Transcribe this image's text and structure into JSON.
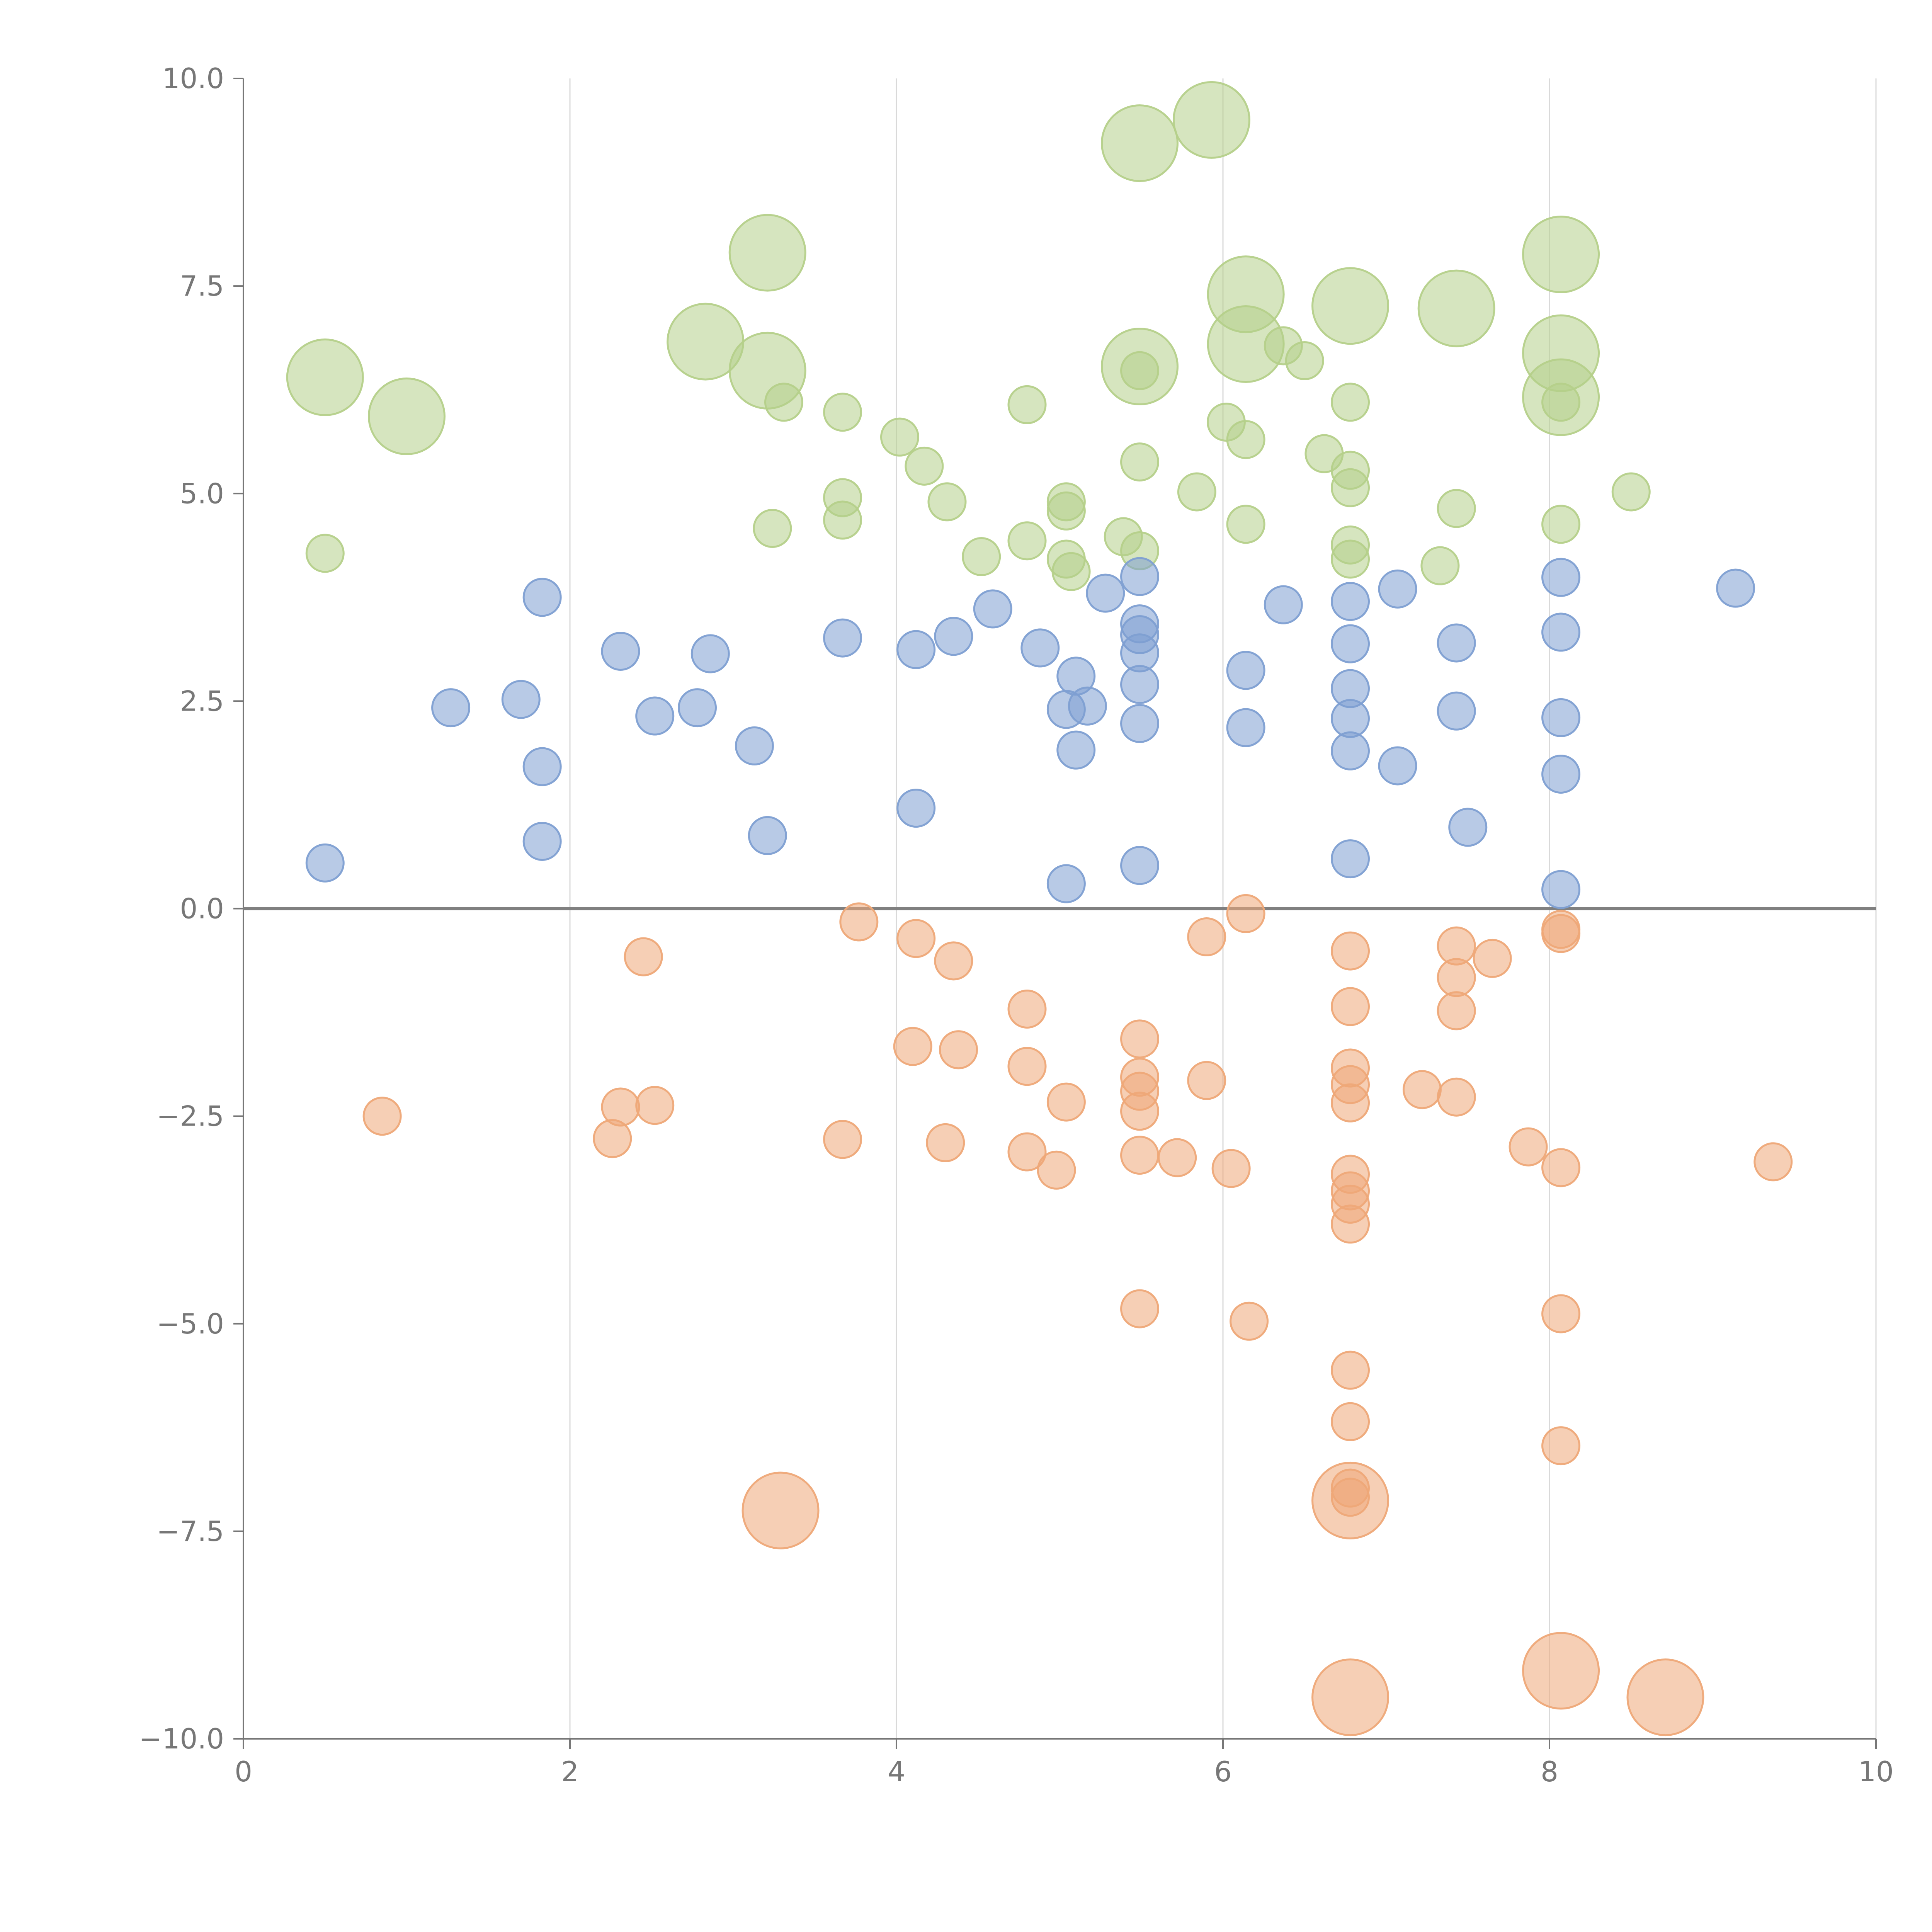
{
  "chart_data": {
    "type": "scatter",
    "title": "",
    "xlabel": "",
    "ylabel": "",
    "xlim": [
      0,
      10
    ],
    "ylim": [
      -10,
      10
    ],
    "grid": "vertical",
    "legend": "none",
    "x_ticks": [
      0,
      2,
      4,
      6,
      8,
      10
    ],
    "x_tick_labels": [
      "0",
      "2",
      "4",
      "6",
      "8",
      "10"
    ],
    "y_ticks": [
      10,
      7.5,
      5,
      2.5,
      0,
      -2.5,
      -5,
      -7.5,
      -10
    ],
    "y_tick_labels": [
      "10.0",
      "7.5",
      "5.0",
      "2.5",
      "0.0",
      "−2.5",
      "−5.0",
      "−7.5",
      "−10.0"
    ],
    "colors": {
      "green": "#b5d08a",
      "blue": "#7e9fd2",
      "orange": "#eea878",
      "axis": "#777777",
      "grid": "#d9d9d9"
    },
    "series": [
      {
        "name": "green",
        "points": [
          [
            0.5,
            6.4,
            3
          ],
          [
            1.0,
            5.93,
            3
          ],
          [
            0.5,
            4.28,
            1
          ],
          [
            2.83,
            6.83,
            3
          ],
          [
            3.21,
            7.9,
            3
          ],
          [
            3.21,
            6.48,
            3
          ],
          [
            3.31,
            6.1,
            1
          ],
          [
            3.67,
            5.98,
            1
          ],
          [
            3.67,
            4.95,
            1
          ],
          [
            3.67,
            4.68,
            1
          ],
          [
            3.24,
            4.58,
            1
          ],
          [
            4.02,
            5.68,
            1
          ],
          [
            4.17,
            5.33,
            1
          ],
          [
            4.31,
            4.9,
            1
          ],
          [
            4.52,
            4.24,
            1
          ],
          [
            4.8,
            6.07,
            1
          ],
          [
            4.8,
            4.43,
            1
          ],
          [
            5.04,
            4.9,
            1
          ],
          [
            5.04,
            4.79,
            1
          ],
          [
            5.04,
            4.21,
            1
          ],
          [
            5.07,
            4.06,
            1
          ],
          [
            5.39,
            4.48,
            1
          ],
          [
            5.49,
            4.31,
            1
          ],
          [
            5.49,
            5.38,
            1
          ],
          [
            5.49,
            9.22,
            3
          ],
          [
            5.49,
            6.53,
            3
          ],
          [
            5.49,
            6.48,
            1
          ],
          [
            5.93,
            9.5,
            3
          ],
          [
            5.84,
            5.02,
            1
          ],
          [
            6.02,
            5.86,
            1
          ],
          [
            6.14,
            5.65,
            1
          ],
          [
            6.14,
            4.63,
            1
          ],
          [
            6.14,
            7.4,
            3
          ],
          [
            6.14,
            6.8,
            3
          ],
          [
            6.37,
            6.78,
            1
          ],
          [
            6.5,
            6.6,
            1
          ],
          [
            6.78,
            7.26,
            3
          ],
          [
            6.62,
            5.48,
            1
          ],
          [
            6.78,
            6.1,
            1
          ],
          [
            6.78,
            5.28,
            1
          ],
          [
            6.78,
            5.07,
            1
          ],
          [
            6.78,
            4.38,
            1
          ],
          [
            6.78,
            4.21,
            1
          ],
          [
            7.33,
            4.13,
            1
          ],
          [
            7.43,
            4.82,
            1
          ],
          [
            7.43,
            7.23,
            3
          ],
          [
            8.07,
            7.88,
            3
          ],
          [
            8.07,
            6.69,
            3
          ],
          [
            8.07,
            6.16,
            3
          ],
          [
            8.07,
            6.1,
            1
          ],
          [
            8.07,
            4.63,
            1
          ],
          [
            8.5,
            5.02,
            1
          ]
        ]
      },
      {
        "name": "blue",
        "points": [
          [
            0.5,
            0.55,
            1
          ],
          [
            1.27,
            2.42,
            1
          ],
          [
            1.7,
            2.52,
            1
          ],
          [
            1.83,
            3.75,
            1
          ],
          [
            1.83,
            1.71,
            1
          ],
          [
            1.83,
            0.81,
            1
          ],
          [
            2.31,
            3.1,
            1
          ],
          [
            2.52,
            2.32,
            1
          ],
          [
            2.78,
            2.42,
            1
          ],
          [
            2.86,
            3.07,
            1
          ],
          [
            3.13,
            1.96,
            1
          ],
          [
            3.21,
            0.88,
            1
          ],
          [
            3.67,
            3.26,
            1
          ],
          [
            4.12,
            3.12,
            1
          ],
          [
            4.12,
            1.21,
            1
          ],
          [
            4.35,
            3.28,
            1
          ],
          [
            4.59,
            3.61,
            1
          ],
          [
            4.88,
            3.14,
            1
          ],
          [
            5.04,
            2.4,
            1
          ],
          [
            5.04,
            0.3,
            1
          ],
          [
            5.1,
            2.8,
            1
          ],
          [
            5.1,
            1.91,
            1
          ],
          [
            5.17,
            2.44,
            1
          ],
          [
            5.28,
            3.8,
            1
          ],
          [
            5.49,
            4.0,
            1
          ],
          [
            5.49,
            3.43,
            1
          ],
          [
            5.49,
            3.3,
            1
          ],
          [
            5.49,
            3.08,
            1
          ],
          [
            5.49,
            2.7,
            1
          ],
          [
            5.49,
            2.23,
            1
          ],
          [
            5.49,
            0.52,
            1
          ],
          [
            6.14,
            2.87,
            1
          ],
          [
            6.14,
            2.18,
            1
          ],
          [
            6.37,
            3.66,
            1
          ],
          [
            6.78,
            3.7,
            1
          ],
          [
            6.78,
            3.19,
            1
          ],
          [
            6.78,
            2.65,
            1
          ],
          [
            6.78,
            2.29,
            1
          ],
          [
            6.78,
            1.9,
            1
          ],
          [
            6.78,
            0.6,
            1
          ],
          [
            7.07,
            3.85,
            1
          ],
          [
            7.07,
            1.72,
            1
          ],
          [
            7.43,
            3.2,
            1
          ],
          [
            7.43,
            2.38,
            1
          ],
          [
            7.5,
            0.98,
            1
          ],
          [
            8.07,
            3.99,
            1
          ],
          [
            8.07,
            3.33,
            1
          ],
          [
            8.07,
            2.3,
            1
          ],
          [
            8.07,
            1.62,
            1
          ],
          [
            8.07,
            0.23,
            1
          ],
          [
            9.14,
            3.86,
            1
          ]
        ]
      },
      {
        "name": "orange",
        "points": [
          [
            0.85,
            -2.5,
            1
          ],
          [
            2.26,
            -2.77,
            1
          ],
          [
            2.31,
            -2.39,
            1
          ],
          [
            2.45,
            -0.58,
            1
          ],
          [
            2.52,
            -2.37,
            1
          ],
          [
            3.29,
            -7.25,
            3
          ],
          [
            3.67,
            -2.78,
            1
          ],
          [
            3.77,
            -0.16,
            1
          ],
          [
            4.1,
            -1.66,
            1
          ],
          [
            4.12,
            -0.36,
            1
          ],
          [
            4.3,
            -2.82,
            1
          ],
          [
            4.35,
            -0.63,
            1
          ],
          [
            4.38,
            -1.7,
            1
          ],
          [
            4.8,
            -1.21,
            1
          ],
          [
            4.8,
            -1.9,
            1
          ],
          [
            4.8,
            -2.93,
            1
          ],
          [
            4.98,
            -3.15,
            1
          ],
          [
            5.04,
            -2.33,
            1
          ],
          [
            5.49,
            -1.57,
            1
          ],
          [
            5.49,
            -2.03,
            1
          ],
          [
            5.49,
            -2.2,
            1
          ],
          [
            5.49,
            -2.44,
            1
          ],
          [
            5.49,
            -2.97,
            1
          ],
          [
            5.49,
            -4.82,
            1
          ],
          [
            5.72,
            -3.0,
            1
          ],
          [
            5.9,
            -0.34,
            1
          ],
          [
            5.9,
            -2.07,
            1
          ],
          [
            6.05,
            -3.13,
            1
          ],
          [
            6.14,
            -0.06,
            1
          ],
          [
            6.16,
            -4.97,
            1
          ],
          [
            6.78,
            -0.51,
            1
          ],
          [
            6.78,
            -1.18,
            1
          ],
          [
            6.78,
            -1.92,
            1
          ],
          [
            6.78,
            -2.12,
            1
          ],
          [
            6.78,
            -2.34,
            1
          ],
          [
            6.78,
            -3.2,
            1
          ],
          [
            6.78,
            -3.4,
            1
          ],
          [
            6.78,
            -3.56,
            1
          ],
          [
            6.78,
            -3.8,
            1
          ],
          [
            6.78,
            -5.56,
            1
          ],
          [
            6.78,
            -6.18,
            1
          ],
          [
            6.78,
            -6.98,
            1
          ],
          [
            6.78,
            -7.09,
            1
          ],
          [
            6.78,
            -7.13,
            3
          ],
          [
            6.78,
            -9.5,
            3
          ],
          [
            7.22,
            -2.18,
            1
          ],
          [
            7.43,
            -0.45,
            1
          ],
          [
            7.43,
            -0.83,
            1
          ],
          [
            7.43,
            -1.23,
            1
          ],
          [
            7.43,
            -2.27,
            1
          ],
          [
            7.65,
            -0.6,
            1
          ],
          [
            7.87,
            -2.87,
            1
          ],
          [
            8.07,
            -0.25,
            1
          ],
          [
            8.07,
            -0.3,
            1
          ],
          [
            8.07,
            -3.12,
            1
          ],
          [
            8.07,
            -4.88,
            1
          ],
          [
            8.07,
            -6.47,
            1
          ],
          [
            8.07,
            -9.18,
            3
          ],
          [
            8.71,
            -9.5,
            3
          ],
          [
            9.37,
            -3.05,
            1
          ]
        ]
      }
    ]
  }
}
